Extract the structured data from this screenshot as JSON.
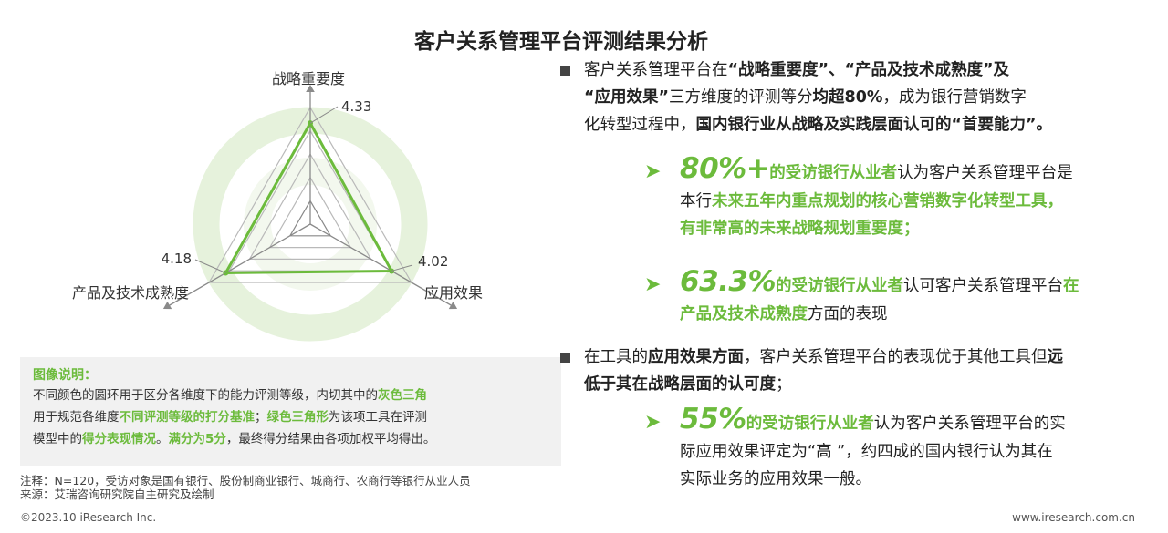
{
  "page": {
    "title": "客户关系管理平台评测结果分析",
    "copyright": "©2023.10 iResearch Inc.",
    "website": "www.iresearch.com.cn"
  },
  "chart_data": {
    "type": "radar",
    "title": "",
    "axes": [
      "战略重要度",
      "应用效果",
      "产品及技术成熟度"
    ],
    "ylim": [
      0,
      5
    ],
    "series": [
      {
        "values": [
          4.33,
          4.02,
          4.18
        ]
      }
    ],
    "value_labels": [
      "4.33",
      "4.02",
      "4.18"
    ],
    "colors": {
      "series": "#6cbb3c",
      "ring": "#e6f2dc",
      "grid": "#b9b9b9"
    }
  },
  "legend": {
    "title": "图像说明：",
    "l1_a": "不同颜色的圆环用于区分各维度下的能力评测等级，内切其中的",
    "l1_b": "灰色三角",
    "l2_a": "用于规范各维度",
    "l2_b": "不同评测等级的打分基准",
    "l2_c": "；",
    "l2_d": "绿色三角形",
    "l2_e": "为该项工具在评测",
    "l3_a": "模型中的",
    "l3_b": "得分表现情况",
    "l3_c": "。",
    "l3_d": "满分为5分",
    "l3_e": "，最终得分结果由各项加权平均得出。"
  },
  "notes": {
    "note": "注释：N=120，受访对象是国有银行、股份制商业银行、城商行、农商行等银行从业人员",
    "source": "来源：艾瑞咨询研究院自主研究及绘制"
  },
  "right": {
    "p1_l1_a": "客户关系管理平台在",
    "p1_l1_b": "“战略重要度”",
    "p1_l1_c": "、",
    "p1_l1_d": "“产品及技术成熟度”",
    "p1_l1_e": "及",
    "p1_l2_a": "“应用效果”",
    "p1_l2_b": "三方维度的评测等分",
    "p1_l2_c": "均超80%",
    "p1_l2_d": "，成为银行营销数字",
    "p1_l3_a": "化转型过程中，",
    "p1_l3_b": "国内银行业从战略及实践层面认可的“首要能力”",
    "p1_l3_c": "。",
    "b1_big": "80%+",
    "b1_l1_a": "的受访银行从业者",
    "b1_l1_b": "认为客户关系管理平台是",
    "b1_l2_a": "本行",
    "b1_l2_b": "未来五年内重点规划的核心营销数字化转型工具，",
    "b1_l3": "有非常高的未来战略规划重要度；",
    "b2_big": "63.3%",
    "b2_l1_a": "的受访银行从业者",
    "b2_l1_b": "认可客户关系管理平台",
    "b2_l1_c": "在",
    "b2_l2_a": "产品及技术成熟度",
    "b2_l2_b": "方面的表现",
    "p2_l1_a": "在工具的",
    "p2_l1_b": "应用效果方面",
    "p2_l1_c": "，客户关系管理平台的表现优于其他工具但",
    "p2_l1_d": "远",
    "p2_l2": "低于其在战略层面的认可度",
    "p2_l2_b": "；",
    "b3_big": "55%",
    "b3_l1_a": "的受访银行从业者",
    "b3_l1_b": "认为客户关系管理平台的实",
    "b3_l2": "际应用效果评定为“高 ”，约四成的国内银行认为其在",
    "b3_l3": "实际业务的应用效果一般。"
  }
}
